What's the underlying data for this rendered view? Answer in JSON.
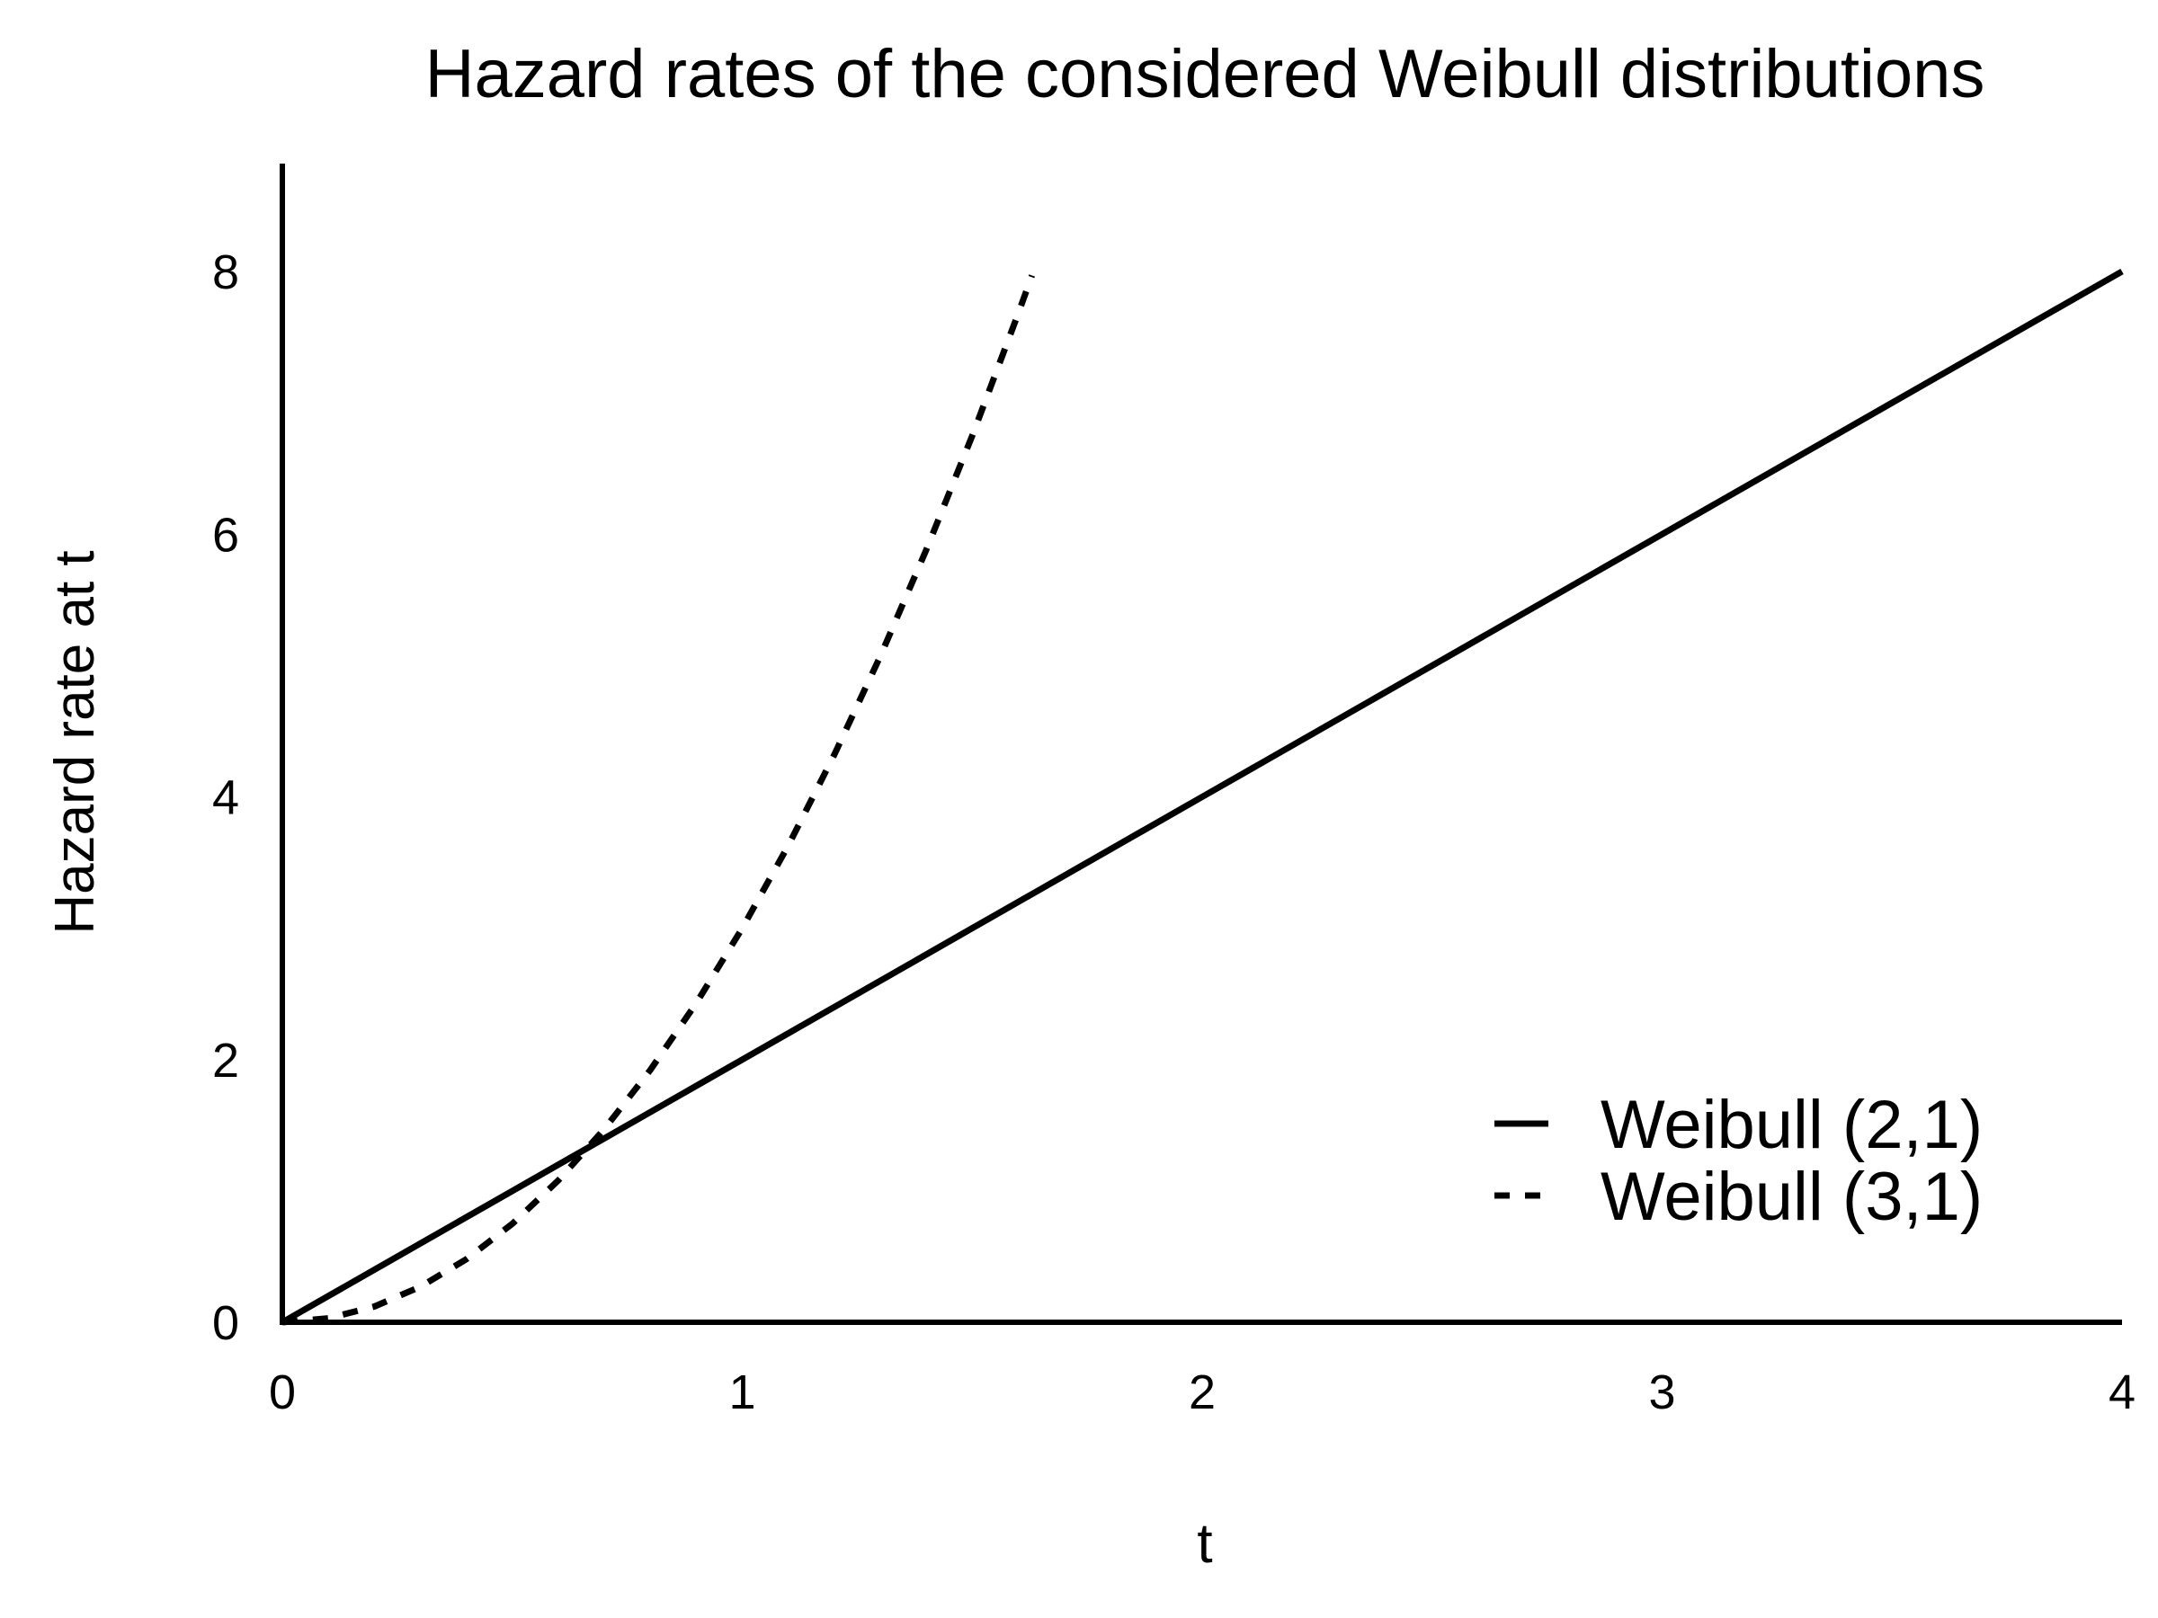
{
  "chart_data": {
    "type": "line",
    "title": "Hazard rates of the considered Weibull distributions",
    "xlabel": "t",
    "ylabel": "Hazard rate at t",
    "xlim": [
      0,
      4
    ],
    "ylim": [
      0,
      8
    ],
    "x_ticks": [
      "0",
      "1",
      "2",
      "3",
      "4"
    ],
    "y_ticks": [
      "0",
      "2",
      "4",
      "6",
      "8"
    ],
    "grid": false,
    "legend_position": "bottom-right",
    "series": [
      {
        "name": "Weibull (2,1)",
        "style": "solid",
        "color": "#000000",
        "x": [
          0,
          0.5,
          1,
          1.5,
          2,
          2.5,
          3,
          3.5,
          4
        ],
        "y": [
          0,
          1,
          2,
          3,
          4,
          5,
          6,
          7,
          8
        ]
      },
      {
        "name": "Weibull (3,1)",
        "style": "dashed",
        "color": "#000000",
        "x": [
          0,
          0.1,
          0.2,
          0.3,
          0.4,
          0.5,
          0.6,
          0.7,
          0.8,
          0.9,
          1.0,
          1.1,
          1.2,
          1.3,
          1.4,
          1.5,
          1.6,
          1.63
        ],
        "y": [
          0,
          0.03,
          0.12,
          0.27,
          0.48,
          0.75,
          1.08,
          1.47,
          1.92,
          2.43,
          3.0,
          3.63,
          4.32,
          5.07,
          5.88,
          6.75,
          7.68,
          7.97
        ]
      }
    ]
  }
}
